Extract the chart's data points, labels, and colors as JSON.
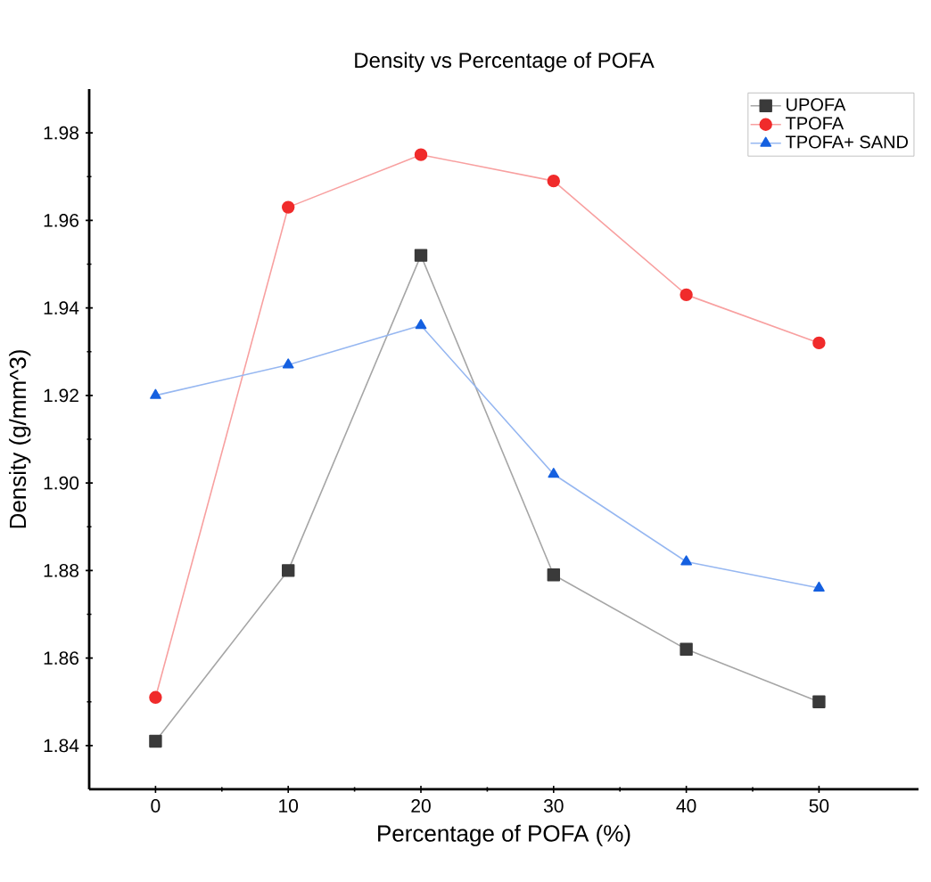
{
  "chart_data": {
    "type": "line",
    "title": "Density vs Percentage of POFA",
    "xlabel": "Percentage of POFA (%)",
    "ylabel": "Density (g/mm^3)",
    "x": [
      0,
      10,
      20,
      30,
      40,
      50
    ],
    "series": [
      {
        "name": "UPOFA",
        "color": "#3a3a3a",
        "marker": "square",
        "values": [
          1.841,
          1.88,
          1.952,
          1.879,
          1.862,
          1.85
        ]
      },
      {
        "name": "TPOFA",
        "color": "#f02b2b",
        "marker": "circle",
        "values": [
          1.851,
          1.963,
          1.975,
          1.969,
          1.943,
          1.932
        ]
      },
      {
        "name": "TPOFA+ SAND",
        "color": "#1560e0",
        "marker": "triangle",
        "values": [
          1.92,
          1.927,
          1.936,
          1.902,
          1.882,
          1.876
        ]
      }
    ],
    "xlim": [
      -5,
      57.5
    ],
    "ylim": [
      1.83,
      1.99
    ],
    "xticks": [
      0,
      10,
      20,
      30,
      40,
      50
    ],
    "yticks": [
      1.84,
      1.86,
      1.88,
      {
        "value": 1.9,
        "label": "1.90"
      },
      1.92,
      1.94,
      1.96,
      1.98
    ],
    "grid": false,
    "legend": "top right",
    "line_style": "solid"
  }
}
